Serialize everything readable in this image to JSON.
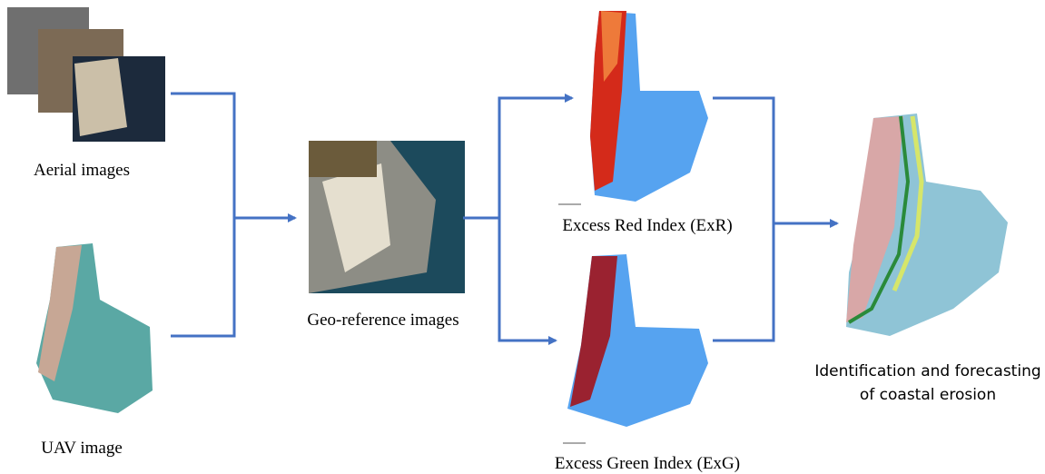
{
  "nodes": [
    {
      "label": "Aerial images"
    },
    {
      "label": "UAV image"
    },
    {
      "label": "Geo-reference images"
    },
    {
      "label": "Excess Red Index (ExR)"
    },
    {
      "label": "Excess Green Index (ExG)"
    },
    {
      "label": [
        "Identification and forecasting",
        "of coastal erosion"
      ]
    }
  ]
}
